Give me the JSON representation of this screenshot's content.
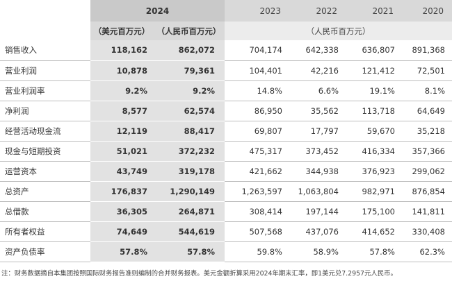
{
  "header": {
    "highlight_year": "2024",
    "years": [
      "2023",
      "2022",
      "2021",
      "2020"
    ],
    "unit_usd": "（美元百万元）",
    "unit_rmb": "（人民币百万元）",
    "unit_rmb_history": "（人民币百万元）"
  },
  "rows": [
    {
      "label": "销售收入",
      "usd": "118,162",
      "rmb": "862,072",
      "y2023": "704,174",
      "y2022": "642,338",
      "y2021": "636,807",
      "y2020": "891,368"
    },
    {
      "label": "营业利润",
      "usd": "10,878",
      "rmb": "79,361",
      "y2023": "104,401",
      "y2022": "42,216",
      "y2021": "121,412",
      "y2020": "72,501"
    },
    {
      "label": "营业利润率",
      "usd": "9.2%",
      "rmb": "9.2%",
      "y2023": "14.8%",
      "y2022": "6.6%",
      "y2021": "19.1%",
      "y2020": "8.1%"
    },
    {
      "label": "净利润",
      "usd": "8,577",
      "rmb": "62,574",
      "y2023": "86,950",
      "y2022": "35,562",
      "y2021": "113,718",
      "y2020": "64,649"
    },
    {
      "label": "经营活动现金流",
      "usd": "12,119",
      "rmb": "88,417",
      "y2023": "69,807",
      "y2022": "17,797",
      "y2021": "59,670",
      "y2020": "35,218"
    },
    {
      "label": "现金与短期投资",
      "usd": "51,021",
      "rmb": "372,232",
      "y2023": "475,317",
      "y2022": "373,452",
      "y2021": "416,334",
      "y2020": "357,366"
    },
    {
      "label": "运营资本",
      "usd": "43,749",
      "rmb": "319,178",
      "y2023": "421,662",
      "y2022": "344,938",
      "y2021": "376,923",
      "y2020": "299,062"
    },
    {
      "label": "总资产",
      "usd": "176,837",
      "rmb": "1,290,149",
      "y2023": "1,263,597",
      "y2022": "1,063,804",
      "y2021": "982,971",
      "y2020": "876,854"
    },
    {
      "label": "总借款",
      "usd": "36,305",
      "rmb": "264,871",
      "y2023": "308,414",
      "y2022": "197,144",
      "y2021": "175,100",
      "y2020": "141,811"
    },
    {
      "label": "所有者权益",
      "usd": "74,649",
      "rmb": "544,619",
      "y2023": "507,568",
      "y2022": "437,076",
      "y2021": "414,652",
      "y2020": "330,408"
    },
    {
      "label": "资产负债率",
      "usd": "57.8%",
      "rmb": "57.8%",
      "y2023": "59.8%",
      "y2022": "58.9%",
      "y2021": "57.8%",
      "y2020": "62.3%"
    }
  ],
  "footnote": "注：财务数据摘自本集团按照国际财务报告准则编制的合并财务报表。美元金额折算采用2024年期末汇率，即1美元兑7.2957元人民币。"
}
